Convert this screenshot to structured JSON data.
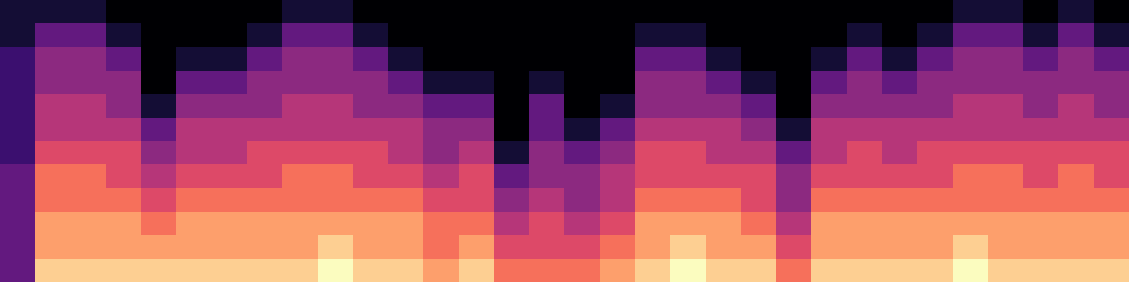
{
  "chart_data": {
    "type": "heatmap",
    "tick_labels": false,
    "color_range": [
      0,
      10
    ],
    "cells": [
      [
        3,
        3,
        3,
        3,
        3,
        2,
        2,
        2,
        2,
        2,
        1,
        1
      ],
      [
        9,
        8,
        8,
        7,
        7,
        6,
        5,
        5,
        4,
        4,
        3,
        1
      ],
      [
        9,
        8,
        8,
        7,
        7,
        6,
        5,
        5,
        4,
        4,
        3,
        1
      ],
      [
        9,
        8,
        8,
        7,
        6,
        6,
        5,
        4,
        4,
        3,
        1,
        0
      ],
      [
        9,
        8,
        7,
        6,
        5,
        4,
        3,
        1,
        0,
        0,
        0,
        0
      ],
      [
        9,
        8,
        8,
        7,
        6,
        5,
        5,
        4,
        3,
        1,
        0,
        0
      ],
      [
        9,
        8,
        8,
        7,
        6,
        5,
        5,
        4,
        3,
        1,
        0,
        0
      ],
      [
        9,
        8,
        8,
        7,
        6,
        6,
        5,
        4,
        4,
        3,
        1,
        0
      ],
      [
        9,
        8,
        8,
        7,
        7,
        6,
        5,
        5,
        4,
        4,
        3,
        1
      ],
      [
        10,
        9,
        8,
        7,
        7,
        6,
        5,
        5,
        4,
        4,
        3,
        1
      ],
      [
        9,
        8,
        8,
        7,
        6,
        6,
        5,
        4,
        4,
        3,
        1,
        0
      ],
      [
        9,
        8,
        8,
        7,
        6,
        5,
        5,
        4,
        3,
        1,
        0,
        0
      ],
      [
        8,
        7,
        7,
        6,
        5,
        4,
        4,
        3,
        1,
        0,
        0,
        0
      ],
      [
        9,
        8,
        7,
        6,
        6,
        5,
        4,
        3,
        1,
        0,
        0,
        0
      ],
      [
        7,
        6,
        5,
        4,
        3,
        1,
        0,
        0,
        0,
        0,
        0,
        0
      ],
      [
        7,
        6,
        6,
        5,
        4,
        4,
        3,
        3,
        1,
        0,
        0,
        0
      ],
      [
        7,
        6,
        5,
        4,
        4,
        3,
        1,
        0,
        0,
        0,
        0,
        0
      ],
      [
        8,
        7,
        6,
        5,
        5,
        4,
        3,
        1,
        0,
        0,
        0,
        0
      ],
      [
        9,
        8,
        8,
        7,
        6,
        6,
        5,
        4,
        4,
        3,
        1,
        0
      ],
      [
        10,
        9,
        8,
        7,
        6,
        6,
        5,
        4,
        4,
        3,
        1,
        0
      ],
      [
        9,
        8,
        8,
        7,
        6,
        5,
        5,
        4,
        3,
        1,
        0,
        0
      ],
      [
        9,
        8,
        7,
        6,
        6,
        5,
        4,
        3,
        1,
        0,
        0,
        0
      ],
      [
        7,
        6,
        5,
        4,
        4,
        3,
        1,
        0,
        0,
        0,
        0,
        0
      ],
      [
        9,
        8,
        8,
        7,
        6,
        5,
        5,
        4,
        3,
        1,
        0,
        0
      ],
      [
        9,
        8,
        8,
        7,
        6,
        6,
        5,
        4,
        4,
        3,
        1,
        0
      ],
      [
        9,
        8,
        8,
        7,
        6,
        5,
        5,
        4,
        3,
        1,
        0,
        0
      ],
      [
        9,
        8,
        8,
        7,
        6,
        6,
        5,
        4,
        4,
        3,
        1,
        0
      ],
      [
        10,
        9,
        8,
        7,
        7,
        6,
        5,
        5,
        4,
        4,
        3,
        1
      ],
      [
        9,
        8,
        8,
        7,
        7,
        6,
        5,
        5,
        4,
        4,
        3,
        1
      ],
      [
        9,
        8,
        8,
        7,
        6,
        6,
        5,
        4,
        4,
        3,
        1,
        0
      ],
      [
        9,
        8,
        8,
        7,
        7,
        6,
        5,
        5,
        4,
        4,
        3,
        1
      ],
      [
        9,
        8,
        8,
        7,
        6,
        6,
        5,
        4,
        4,
        3,
        1,
        0
      ]
    ]
  }
}
